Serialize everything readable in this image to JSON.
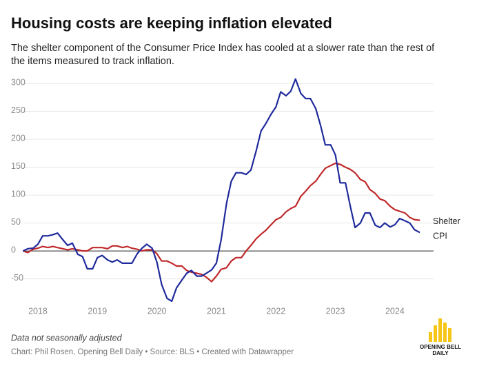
{
  "chart_data": {
    "type": "line",
    "title": "Housing costs are keeping inflation elevated",
    "subtitle": [
      "The shelter component of the Consumer Price Index has cooled at a slower rate than the rest of",
      "the items measured to track inflation."
    ],
    "x": [
      2017.75,
      2017.83,
      2017.92,
      2018.0,
      2018.08,
      2018.17,
      2018.25,
      2018.33,
      2018.42,
      2018.5,
      2018.58,
      2018.67,
      2018.75,
      2018.83,
      2018.92,
      2019.0,
      2019.08,
      2019.17,
      2019.25,
      2019.33,
      2019.42,
      2019.5,
      2019.58,
      2019.67,
      2019.75,
      2019.83,
      2019.92,
      2020.0,
      2020.08,
      2020.17,
      2020.25,
      2020.33,
      2020.42,
      2020.5,
      2020.58,
      2020.67,
      2020.75,
      2020.83,
      2020.92,
      2021.0,
      2021.08,
      2021.17,
      2021.25,
      2021.33,
      2021.42,
      2021.5,
      2021.58,
      2021.67,
      2021.75,
      2021.83,
      2021.92,
      2022.0,
      2022.08,
      2022.17,
      2022.25,
      2022.33,
      2022.42,
      2022.5,
      2022.58,
      2022.67,
      2022.75,
      2022.83,
      2022.92,
      2023.0,
      2023.08,
      2023.17,
      2023.25,
      2023.33,
      2023.42,
      2023.5,
      2023.58,
      2023.67,
      2023.75,
      2023.83,
      2023.92,
      2024.0,
      2024.08,
      2024.17,
      2024.25,
      2024.33,
      2024.42
    ],
    "series": [
      {
        "name": "Shelter",
        "color": "#c0292b",
        "values": [
          0,
          -3,
          3,
          5,
          8,
          6,
          8,
          6,
          4,
          2,
          4,
          2,
          0,
          0,
          6,
          6,
          6,
          4,
          9,
          9,
          6,
          8,
          5,
          3,
          0,
          2,
          2,
          -5,
          -18,
          -18,
          -22,
          -27,
          -27,
          -35,
          -38,
          -40,
          -42,
          -47,
          -55,
          -45,
          -33,
          -30,
          -18,
          -12,
          -12,
          0,
          10,
          22,
          30,
          37,
          47,
          56,
          60,
          70,
          76,
          80,
          98,
          107,
          117,
          125,
          137,
          148,
          153,
          157,
          155,
          150,
          146,
          140,
          128,
          124,
          110,
          103,
          93,
          90,
          80,
          74,
          71,
          68,
          60,
          56,
          55
        ]
      },
      {
        "name": "CPI",
        "color": "#1f2a9c",
        "values": [
          0,
          4,
          5,
          12,
          27,
          27,
          29,
          32,
          20,
          10,
          14,
          -6,
          -10,
          -32,
          -32,
          -12,
          -8,
          -16,
          -20,
          -16,
          -22,
          -22,
          -22,
          -5,
          5,
          12,
          5,
          -20,
          -60,
          -85,
          -90,
          -66,
          -52,
          -40,
          -35,
          -45,
          -45,
          -40,
          -34,
          -22,
          20,
          85,
          125,
          140,
          140,
          137,
          145,
          180,
          215,
          228,
          245,
          258,
          285,
          278,
          286,
          308,
          282,
          273,
          273,
          255,
          225,
          190,
          190,
          172,
          122,
          122,
          80,
          42,
          50,
          68,
          68,
          46,
          42,
          50,
          43,
          47,
          58,
          54,
          50,
          38,
          33
        ]
      }
    ],
    "xlim": [
      2017.75,
      2024.65
    ],
    "xticks": [
      2018,
      2019,
      2020,
      2021,
      2022,
      2023,
      2024
    ],
    "ylim": [
      -90,
      310
    ],
    "yticks": [
      -50,
      0,
      50,
      100,
      150,
      200,
      250,
      300
    ],
    "grid": true,
    "note": "Data not seasonally adjusted",
    "source": "Chart: Phil Rosen, Opening Bell Daily • Source: BLS • Created with Datawrapper",
    "logo": [
      "OPENING BELL",
      "DAILY"
    ]
  }
}
